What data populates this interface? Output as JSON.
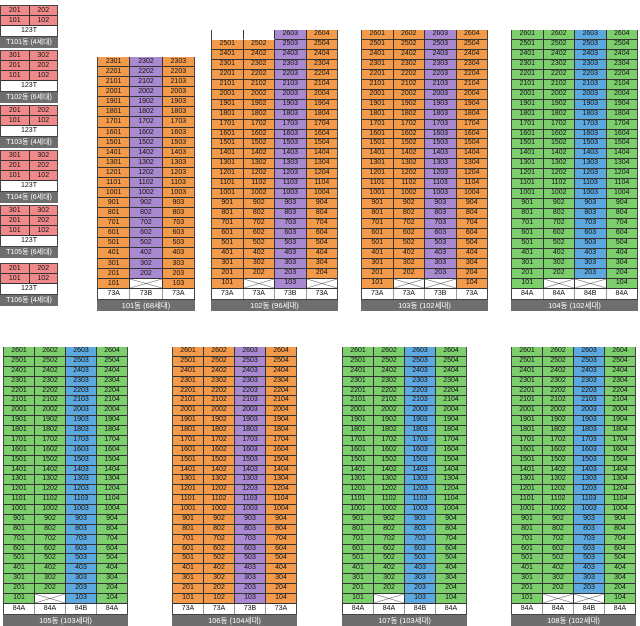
{
  "colors": {
    "salmon": "#f08a8a",
    "orange": "#f39a4b",
    "purple": "#a98ad0",
    "green": "#7dcf6e",
    "blue": "#5ea8e0",
    "label_bg": "#6e6e6e"
  },
  "small_buildings": [
    {
      "name": "T101동 (4세대)",
      "type": "123T",
      "rows": [
        [
          "201",
          "202"
        ],
        [
          "101",
          "102"
        ]
      ]
    },
    {
      "name": "T102동 (6세대)",
      "type": "123T",
      "rows": [
        [
          "301",
          "302"
        ],
        [
          "201",
          "202"
        ],
        [
          "101",
          "102"
        ]
      ]
    },
    {
      "name": "T103동 (4세대)",
      "type": "123T",
      "rows": [
        [
          "201",
          "202"
        ],
        [
          "101",
          "102"
        ]
      ]
    },
    {
      "name": "T104동 (6세대)",
      "type": "123T",
      "rows": [
        [
          "301",
          "302"
        ],
        [
          "201",
          "202"
        ],
        [
          "101",
          "102"
        ]
      ]
    },
    {
      "name": "T105동 (6세대)",
      "type": "123T",
      "rows": [
        [
          "301",
          "302"
        ],
        [
          "201",
          "202"
        ],
        [
          "101",
          "102"
        ]
      ]
    },
    {
      "name": "T106동 (4세대)",
      "type": "123T",
      "rows": [
        [
          "201",
          "202"
        ],
        [
          "101",
          "102"
        ]
      ]
    }
  ],
  "buildings": [
    {
      "name": "101동 (68세대)",
      "floors": 23,
      "types": [
        "73A",
        "73B",
        "73A"
      ],
      "colors": [
        "orange",
        "purple",
        "orange"
      ],
      "sfx": [
        "01",
        "02",
        "03"
      ],
      "f1": [
        true,
        false,
        true
      ]
    },
    {
      "name": "102동 (96세대)",
      "floors": 26,
      "types": [
        "73A",
        "73A",
        "73B",
        "73A"
      ],
      "colors": [
        "orange",
        "orange",
        "purple",
        "orange"
      ],
      "sfx": [
        "01",
        "02",
        "03",
        "04"
      ],
      "f1": [
        true,
        false,
        true,
        false
      ],
      "topcols": [
        2,
        3
      ]
    },
    {
      "name": "103동 (102세대)",
      "floors": 26,
      "types": [
        "73A",
        "73A",
        "73B",
        "73A"
      ],
      "colors": [
        "orange",
        "orange",
        "purple",
        "orange"
      ],
      "sfx": [
        "01",
        "02",
        "03",
        "04"
      ],
      "f1": [
        true,
        false,
        false,
        true
      ]
    },
    {
      "name": "104동 (102세대)",
      "floors": 26,
      "types": [
        "84A",
        "84A",
        "84B",
        "84A"
      ],
      "colors": [
        "green",
        "green",
        "blue",
        "green"
      ],
      "sfx": [
        "01",
        "02",
        "03",
        "04"
      ],
      "f1": [
        true,
        false,
        false,
        true
      ]
    },
    {
      "name": "105동 (103세대)",
      "floors": 26,
      "types": [
        "84A",
        "84A",
        "84B",
        "84A"
      ],
      "colors": [
        "green",
        "green",
        "blue",
        "green"
      ],
      "sfx": [
        "01",
        "02",
        "03",
        "04"
      ],
      "f1": [
        true,
        false,
        true,
        true
      ]
    },
    {
      "name": "106동 (104세대)",
      "floors": 26,
      "types": [
        "73A",
        "73A",
        "73B",
        "73A"
      ],
      "colors": [
        "orange",
        "orange",
        "purple",
        "orange"
      ],
      "sfx": [
        "01",
        "02",
        "03",
        "04"
      ],
      "f1": [
        true,
        true,
        true,
        true
      ]
    },
    {
      "name": "107동 (103세대)",
      "floors": 26,
      "types": [
        "84A",
        "84A",
        "84B",
        "84A"
      ],
      "colors": [
        "green",
        "green",
        "blue",
        "green"
      ],
      "sfx": [
        "01",
        "02",
        "03",
        "04"
      ],
      "f1": [
        true,
        false,
        true,
        true
      ]
    },
    {
      "name": "108동 (102세대)",
      "floors": 26,
      "types": [
        "84A",
        "84A",
        "84B",
        "84A"
      ],
      "colors": [
        "green",
        "green",
        "blue",
        "green"
      ],
      "sfx": [
        "01",
        "02",
        "03",
        "04"
      ],
      "f1": [
        true,
        false,
        false,
        true
      ]
    }
  ]
}
